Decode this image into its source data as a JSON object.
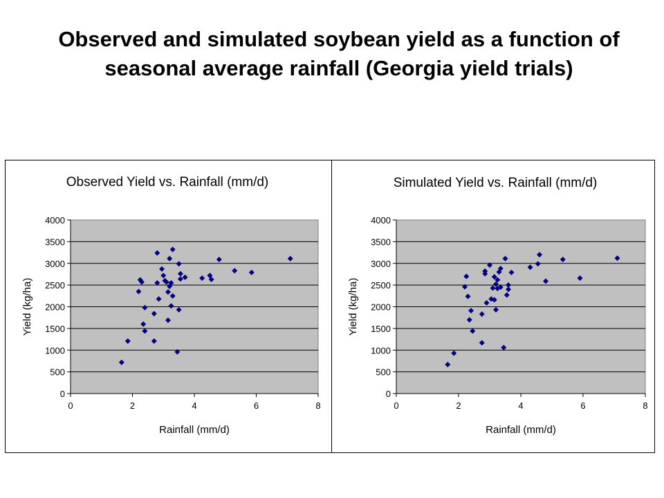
{
  "slide": {
    "title": "Observed and simulated soybean yield as a function of seasonal average rainfall (Georgia yield trials)"
  },
  "colors": {
    "plot_area": "#c0c0c0",
    "marker": "#000080",
    "axis": "#000000",
    "gridline": "#000000"
  },
  "chart_data": [
    {
      "type": "scatter",
      "title": "Observed Yield vs. Rainfall (mm/d)",
      "xlabel": "Rainfall (mm/d)",
      "ylabel": "Yield (kg/ha)",
      "xlim": [
        0,
        8
      ],
      "ylim": [
        0,
        4000
      ],
      "xticks": [
        0,
        2,
        4,
        6,
        8
      ],
      "yticks": [
        0,
        500,
        1000,
        1500,
        2000,
        2500,
        3000,
        3500,
        4000
      ],
      "grid": "horizontal",
      "legend": "none",
      "marker": "diamond",
      "points": [
        [
          1.65,
          720
        ],
        [
          1.85,
          1210
        ],
        [
          2.2,
          2350
        ],
        [
          2.25,
          2620
        ],
        [
          2.3,
          2570
        ],
        [
          2.35,
          1600
        ],
        [
          2.4,
          1980
        ],
        [
          2.4,
          1440
        ],
        [
          2.7,
          1840
        ],
        [
          2.7,
          1210
        ],
        [
          2.8,
          3240
        ],
        [
          2.8,
          2550
        ],
        [
          2.85,
          2180
        ],
        [
          2.95,
          2870
        ],
        [
          3.0,
          2720
        ],
        [
          3.05,
          2600
        ],
        [
          3.1,
          2570
        ],
        [
          3.15,
          2340
        ],
        [
          3.15,
          1690
        ],
        [
          3.2,
          2470
        ],
        [
          3.2,
          3110
        ],
        [
          3.25,
          2020
        ],
        [
          3.3,
          3320
        ],
        [
          3.3,
          2250
        ],
        [
          3.25,
          2550
        ],
        [
          3.45,
          960
        ],
        [
          3.5,
          2990
        ],
        [
          3.5,
          1930
        ],
        [
          3.55,
          2760
        ],
        [
          3.55,
          2640
        ],
        [
          3.7,
          2680
        ],
        [
          4.25,
          2660
        ],
        [
          4.5,
          2720
        ],
        [
          4.55,
          2630
        ],
        [
          4.8,
          3090
        ],
        [
          5.3,
          2830
        ],
        [
          5.85,
          2790
        ],
        [
          7.1,
          3110
        ]
      ]
    },
    {
      "type": "scatter",
      "title": "Simulated Yield vs. Rainfall (mm/d)",
      "xlabel": "Rainfall (mm/d)",
      "ylabel": "Yield (kg/ha)",
      "xlim": [
        0,
        8
      ],
      "ylim": [
        0,
        4000
      ],
      "xticks": [
        0,
        2,
        4,
        6,
        8
      ],
      "yticks": [
        0,
        500,
        1000,
        1500,
        2000,
        2500,
        3000,
        3500,
        4000
      ],
      "grid": "horizontal",
      "legend": "none",
      "marker": "diamond",
      "points": [
        [
          1.65,
          670
        ],
        [
          1.85,
          930
        ],
        [
          2.2,
          2460
        ],
        [
          2.25,
          2700
        ],
        [
          2.3,
          2240
        ],
        [
          2.35,
          1700
        ],
        [
          2.4,
          1910
        ],
        [
          2.45,
          1440
        ],
        [
          2.75,
          1170
        ],
        [
          2.75,
          1830
        ],
        [
          2.85,
          2760
        ],
        [
          2.85,
          2820
        ],
        [
          2.9,
          2090
        ],
        [
          3.0,
          2960
        ],
        [
          3.05,
          2180
        ],
        [
          3.1,
          2430
        ],
        [
          3.15,
          2160
        ],
        [
          3.15,
          2690
        ],
        [
          3.2,
          2520
        ],
        [
          3.2,
          1930
        ],
        [
          3.25,
          2620
        ],
        [
          3.25,
          2420
        ],
        [
          3.3,
          2800
        ],
        [
          3.35,
          2880
        ],
        [
          3.35,
          2450
        ],
        [
          3.45,
          1060
        ],
        [
          3.5,
          3110
        ],
        [
          3.55,
          2270
        ],
        [
          3.6,
          2400
        ],
        [
          3.6,
          2500
        ],
        [
          3.7,
          2790
        ],
        [
          4.3,
          2910
        ],
        [
          4.55,
          2990
        ],
        [
          4.6,
          3200
        ],
        [
          4.8,
          2590
        ],
        [
          5.35,
          3090
        ],
        [
          5.9,
          2660
        ],
        [
          7.1,
          3120
        ]
      ]
    }
  ]
}
